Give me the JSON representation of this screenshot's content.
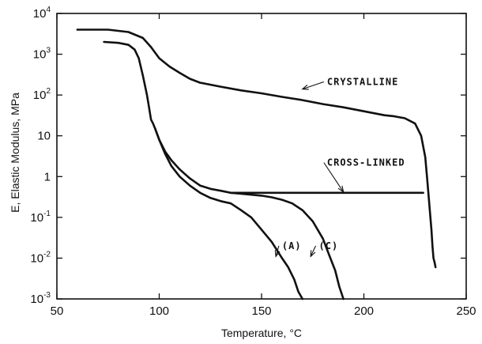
{
  "chart_data": {
    "type": "line",
    "xlabel": "Temperature, °C",
    "ylabel": "E, Elastic Modulus, MPa",
    "xlim": [
      50,
      250
    ],
    "ylim": [
      0.001,
      10000
    ],
    "yscale": "log",
    "grid": false,
    "x_ticks": [
      {
        "value": 50,
        "label": "50"
      },
      {
        "value": 100,
        "label": "100"
      },
      {
        "value": 150,
        "label": "150"
      },
      {
        "value": 200,
        "label": "200"
      },
      {
        "value": 250,
        "label": "250"
      }
    ],
    "y_ticks": [
      {
        "value": 0.001,
        "base": "10",
        "exp": "-3",
        "label": ""
      },
      {
        "value": 0.01,
        "base": "10",
        "exp": "-2",
        "label": ""
      },
      {
        "value": 0.1,
        "base": "10",
        "exp": "-1",
        "label": ""
      },
      {
        "value": 1,
        "base": "",
        "exp": "",
        "label": "1"
      },
      {
        "value": 10,
        "base": "",
        "exp": "",
        "label": "10"
      },
      {
        "value": 100,
        "base": "10",
        "exp": "2",
        "label": ""
      },
      {
        "value": 1000,
        "base": "10",
        "exp": "3",
        "label": ""
      },
      {
        "value": 10000,
        "base": "10",
        "exp": "4",
        "label": ""
      }
    ],
    "series": [
      {
        "name": "CRYSTALLINE",
        "x": [
          60,
          75,
          85,
          92,
          96,
          100,
          105,
          110,
          115,
          120,
          130,
          140,
          150,
          160,
          170,
          180,
          190,
          200,
          210,
          215,
          220,
          225,
          228,
          230,
          231,
          232,
          233,
          233.5,
          234,
          234.5,
          235
        ],
        "y": [
          4000,
          4000,
          3500,
          2500,
          1500,
          800,
          500,
          350,
          250,
          200,
          160,
          130,
          110,
          90,
          75,
          60,
          50,
          40,
          32,
          30,
          27,
          20,
          10,
          3,
          0.8,
          0.2,
          0.05,
          0.02,
          0.01,
          0.008,
          0.006
        ]
      },
      {
        "name": "CROSS-LINKED",
        "x": [
          73,
          80,
          85,
          88,
          90,
          92,
          94,
          95,
          96,
          97,
          98,
          100,
          103,
          106,
          110,
          115,
          120,
          125,
          130,
          135,
          140,
          150,
          160,
          180,
          200,
          220,
          229
        ],
        "y": [
          2000,
          1900,
          1700,
          1300,
          800,
          300,
          100,
          50,
          25,
          20,
          15,
          8,
          4,
          2.5,
          1.5,
          0.9,
          0.6,
          0.5,
          0.45,
          0.4,
          0.4,
          0.4,
          0.4,
          0.4,
          0.4,
          0.4,
          0.4
        ]
      },
      {
        "name": "(A)",
        "x": [
          98,
          100,
          103,
          106,
          110,
          115,
          120,
          125,
          130,
          135,
          140,
          145,
          150,
          155,
          160,
          163,
          166,
          168,
          170
        ],
        "y": [
          15,
          8,
          3.5,
          1.8,
          1,
          0.6,
          0.4,
          0.3,
          0.25,
          0.22,
          0.15,
          0.1,
          0.05,
          0.025,
          0.01,
          0.006,
          0.003,
          0.0015,
          0.001
        ]
      },
      {
        "name": "(C)",
        "x": [
          135,
          140,
          145,
          150,
          155,
          160,
          165,
          170,
          175,
          180,
          183,
          186,
          188,
          190
        ],
        "y": [
          0.4,
          0.38,
          0.36,
          0.34,
          0.31,
          0.27,
          0.22,
          0.15,
          0.08,
          0.03,
          0.012,
          0.005,
          0.002,
          0.001
        ]
      }
    ],
    "annotations": [
      {
        "text": "CRYSTALLINE",
        "x": 182,
        "y": 210,
        "arrow_to": [
          170,
          140
        ]
      },
      {
        "text": "CROSS-LINKED",
        "x": 182,
        "y": 2.2,
        "arrow_to": [
          190,
          0.42
        ]
      },
      {
        "text": "(A)",
        "x": 160,
        "y": 0.02,
        "arrow_to": [
          157,
          0.011
        ]
      },
      {
        "text": "(C)",
        "x": 178,
        "y": 0.02,
        "arrow_to": [
          174,
          0.011
        ]
      }
    ]
  }
}
